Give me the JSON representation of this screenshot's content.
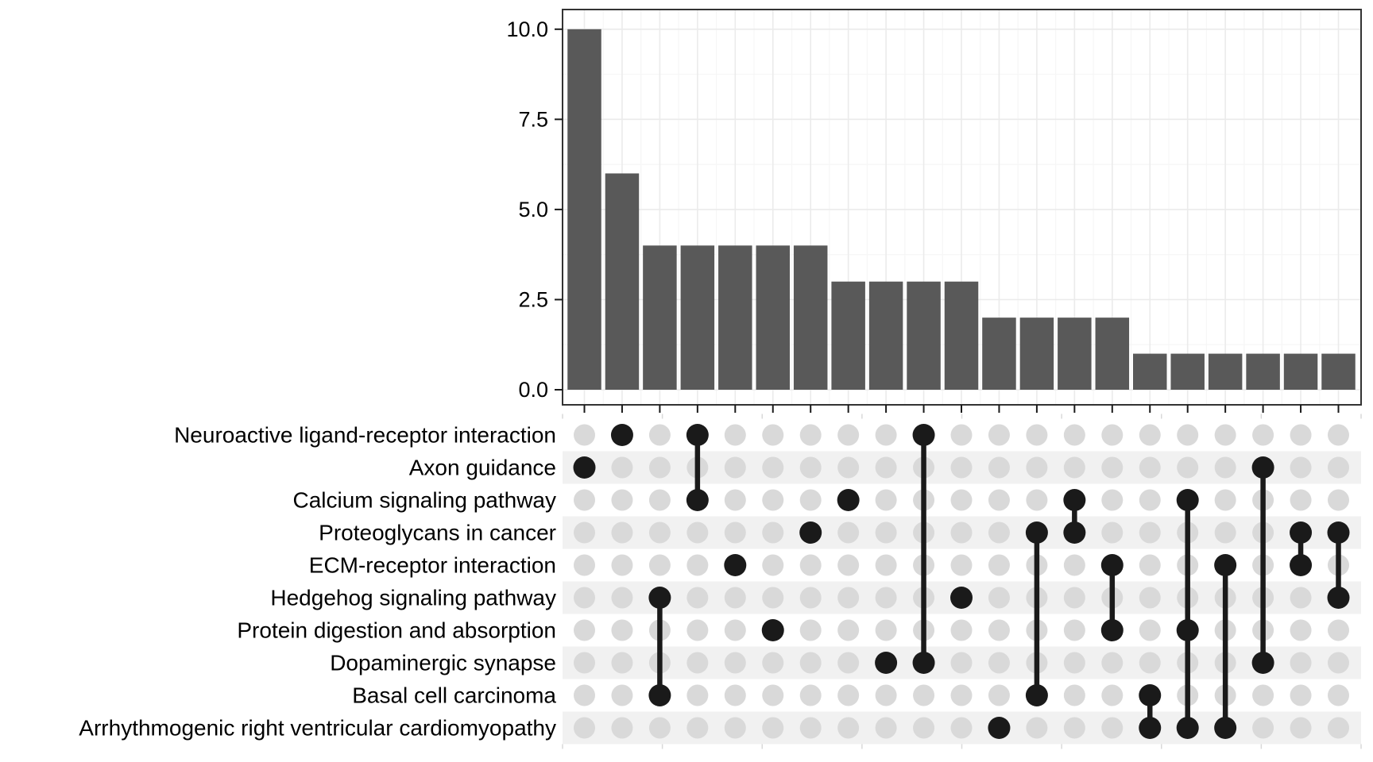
{
  "chart_data": {
    "type": "upset",
    "title": "",
    "bar_chart": {
      "ylabel": "",
      "ylim": [
        0,
        10.5
      ],
      "y_major_breaks": [
        0,
        2.5,
        5,
        7.5,
        10
      ],
      "y_minor_breaks": [
        1.25,
        3.75,
        6.25,
        8.75
      ],
      "y_tick_labels": [
        "0.0",
        "2.5",
        "5.0",
        "7.5",
        "10.0"
      ],
      "grid": "on",
      "values": [
        10,
        6,
        4,
        4,
        4,
        4,
        4,
        3,
        3,
        3,
        3,
        2,
        2,
        2,
        2,
        1,
        1,
        1,
        1,
        1,
        1
      ]
    },
    "sets": [
      "Neuroactive ligand-receptor interaction",
      "Axon guidance",
      "Calcium signaling pathway",
      "Proteoglycans in cancer",
      "ECM-receptor interaction",
      "Hedgehog signaling pathway",
      "Protein digestion and absorption",
      "Dopaminergic synapse",
      "Basal cell carcinoma",
      "Arrhythmogenic right ventricular cardiomyopathy"
    ],
    "intersections": [
      {
        "size": 10,
        "members": [
          "Axon guidance"
        ]
      },
      {
        "size": 6,
        "members": [
          "Neuroactive ligand-receptor interaction"
        ]
      },
      {
        "size": 4,
        "members": [
          "Hedgehog signaling pathway",
          "Basal cell carcinoma"
        ]
      },
      {
        "size": 4,
        "members": [
          "Neuroactive ligand-receptor interaction",
          "Calcium signaling pathway"
        ]
      },
      {
        "size": 4,
        "members": [
          "ECM-receptor interaction"
        ]
      },
      {
        "size": 4,
        "members": [
          "Protein digestion and absorption"
        ]
      },
      {
        "size": 4,
        "members": [
          "Proteoglycans in cancer"
        ]
      },
      {
        "size": 3,
        "members": [
          "Calcium signaling pathway"
        ]
      },
      {
        "size": 3,
        "members": [
          "Dopaminergic synapse"
        ]
      },
      {
        "size": 3,
        "members": [
          "Neuroactive ligand-receptor interaction",
          "Dopaminergic synapse"
        ]
      },
      {
        "size": 3,
        "members": [
          "Hedgehog signaling pathway"
        ]
      },
      {
        "size": 2,
        "members": [
          "Arrhythmogenic right ventricular cardiomyopathy"
        ]
      },
      {
        "size": 2,
        "members": [
          "Proteoglycans in cancer",
          "Basal cell carcinoma"
        ]
      },
      {
        "size": 2,
        "members": [
          "Calcium signaling pathway",
          "Proteoglycans in cancer"
        ]
      },
      {
        "size": 2,
        "members": [
          "ECM-receptor interaction",
          "Protein digestion and absorption"
        ]
      },
      {
        "size": 1,
        "members": [
          "Basal cell carcinoma",
          "Arrhythmogenic right ventricular cardiomyopathy"
        ]
      },
      {
        "size": 1,
        "members": [
          "Calcium signaling pathway",
          "Protein digestion and absorption",
          "Arrhythmogenic right ventricular cardiomyopathy"
        ]
      },
      {
        "size": 1,
        "members": [
          "ECM-receptor interaction",
          "Arrhythmogenic right ventricular cardiomyopathy"
        ]
      },
      {
        "size": 1,
        "members": [
          "Axon guidance",
          "Dopaminergic synapse"
        ]
      },
      {
        "size": 1,
        "members": [
          "Proteoglycans in cancer",
          "ECM-receptor interaction"
        ]
      },
      {
        "size": 1,
        "members": [
          "Proteoglycans in cancer",
          "Hedgehog signaling pathway"
        ]
      }
    ],
    "colors": {
      "bar_fill": "#595959",
      "active_dot": "#1a1a1a",
      "inactive_dot": "#d9d9d9",
      "row_stripe": "#f1f1f1",
      "grid_major": "#ebebeb",
      "grid_minor": "#f6f6f6",
      "panel_border": "#333333",
      "axis_tick": "#1a1a1a",
      "faint_tick": "#d9d9d9",
      "text": "#000000",
      "background": "#ffffff"
    },
    "legend": "none"
  }
}
